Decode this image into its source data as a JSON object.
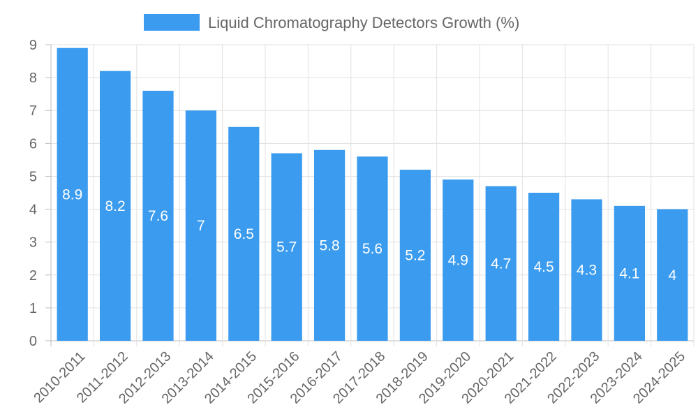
{
  "chart_data": {
    "type": "bar",
    "title": "",
    "xlabel": "",
    "ylabel": "",
    "categories": [
      "2010-2011",
      "2011-2012",
      "2012-2013",
      "2013-2014",
      "2014-2015",
      "2015-2016",
      "2016-2017",
      "2017-2018",
      "2018-2019",
      "2019-2020",
      "2020-2021",
      "2021-2022",
      "2022-2023",
      "2023-2024",
      "2024-2025"
    ],
    "series": [
      {
        "name": "Liquid Chromatography Detectors Growth (%)",
        "values": [
          8.9,
          8.2,
          7.6,
          7,
          6.5,
          5.7,
          5.8,
          5.6,
          5.2,
          4.9,
          4.7,
          4.5,
          4.3,
          4.1,
          4
        ],
        "color": "#3a9bef"
      }
    ],
    "data_labels": [
      "8.9",
      "8.2",
      "7.6",
      "7",
      "6.5",
      "5.7",
      "5.8",
      "5.6",
      "5.2",
      "4.9",
      "4.7",
      "4.5",
      "4.3",
      "4.1",
      "4"
    ],
    "ylim": [
      0,
      9
    ],
    "yticks": [
      "0",
      "1",
      "2",
      "3",
      "4",
      "5",
      "6",
      "7",
      "8",
      "9"
    ],
    "grid": true,
    "legend_position": "top-center"
  }
}
